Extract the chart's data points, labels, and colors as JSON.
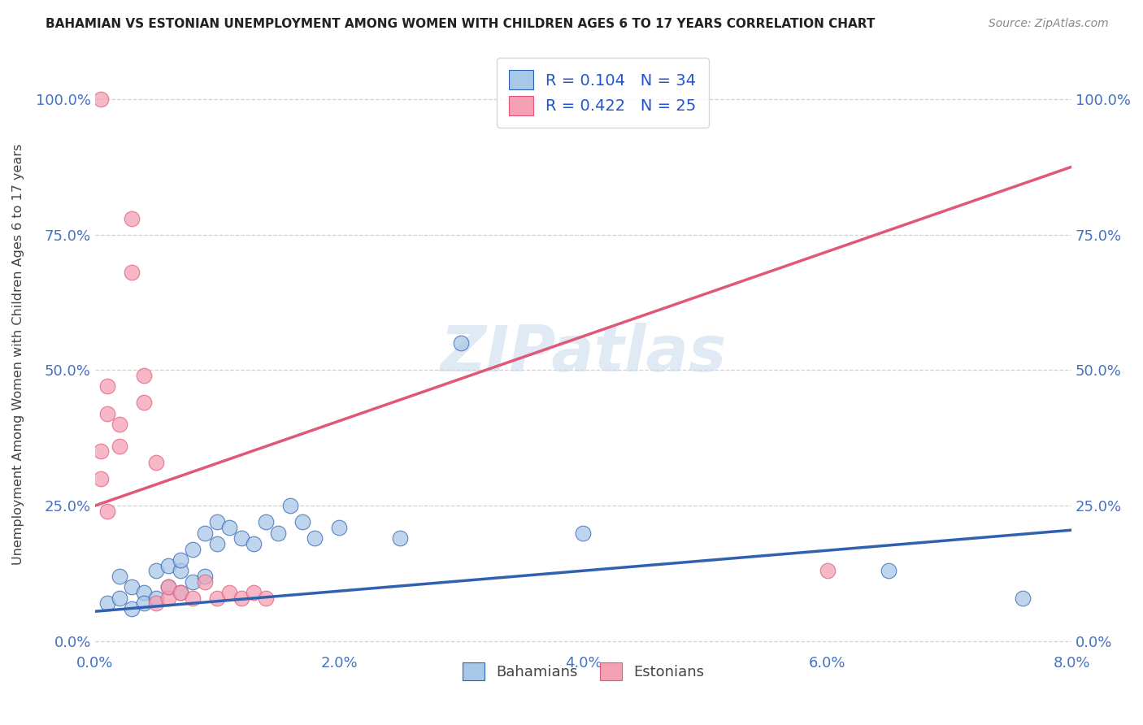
{
  "title": "BAHAMIAN VS ESTONIAN UNEMPLOYMENT AMONG WOMEN WITH CHILDREN AGES 6 TO 17 YEARS CORRELATION CHART",
  "source": "Source: ZipAtlas.com",
  "tick_color": "#4472c4",
  "ylabel": "Unemployment Among Women with Children Ages 6 to 17 years",
  "xlim": [
    0.0,
    0.08
  ],
  "ylim": [
    -0.02,
    1.08
  ],
  "xtick_labels": [
    "0.0%",
    "2.0%",
    "4.0%",
    "6.0%",
    "8.0%"
  ],
  "xtick_vals": [
    0.0,
    0.02,
    0.04,
    0.06,
    0.08
  ],
  "ytick_labels": [
    "0.0%",
    "25.0%",
    "50.0%",
    "75.0%",
    "100.0%"
  ],
  "ytick_vals": [
    0.0,
    0.25,
    0.5,
    0.75,
    1.0
  ],
  "bahamian_color": "#a8c8e8",
  "estonian_color": "#f4a0b5",
  "blue_line_color": "#3060b0",
  "pink_line_color": "#e05878",
  "R_bahamian": 0.104,
  "N_bahamian": 34,
  "R_estonian": 0.422,
  "N_estonian": 25,
  "legend_text_color": "#2255cc",
  "bahamian_x": [
    0.001,
    0.002,
    0.002,
    0.003,
    0.003,
    0.004,
    0.004,
    0.005,
    0.005,
    0.006,
    0.006,
    0.007,
    0.007,
    0.007,
    0.008,
    0.008,
    0.009,
    0.009,
    0.01,
    0.01,
    0.011,
    0.012,
    0.013,
    0.014,
    0.015,
    0.016,
    0.017,
    0.018,
    0.02,
    0.025,
    0.03,
    0.04,
    0.065,
    0.076
  ],
  "bahamian_y": [
    0.07,
    0.08,
    0.12,
    0.1,
    0.06,
    0.09,
    0.07,
    0.13,
    0.08,
    0.14,
    0.1,
    0.09,
    0.13,
    0.15,
    0.11,
    0.17,
    0.2,
    0.12,
    0.22,
    0.18,
    0.21,
    0.19,
    0.18,
    0.22,
    0.2,
    0.25,
    0.22,
    0.19,
    0.21,
    0.19,
    0.55,
    0.2,
    0.13,
    0.08
  ],
  "estonian_x": [
    0.0005,
    0.0005,
    0.001,
    0.001,
    0.001,
    0.002,
    0.002,
    0.003,
    0.003,
    0.004,
    0.004,
    0.005,
    0.005,
    0.006,
    0.006,
    0.007,
    0.008,
    0.009,
    0.01,
    0.011,
    0.012,
    0.013,
    0.014,
    0.06,
    0.0005
  ],
  "estonian_y": [
    0.3,
    0.35,
    0.47,
    0.42,
    0.24,
    0.4,
    0.36,
    0.78,
    0.68,
    0.49,
    0.44,
    0.33,
    0.07,
    0.08,
    0.1,
    0.09,
    0.08,
    0.11,
    0.08,
    0.09,
    0.08,
    0.09,
    0.08,
    0.13,
    1.0
  ],
  "blue_line_x0": 0.0,
  "blue_line_y0": 0.055,
  "blue_line_x1": 0.08,
  "blue_line_y1": 0.205,
  "pink_line_x0": 0.0,
  "pink_line_y0": 0.25,
  "pink_line_x1": 0.08,
  "pink_line_y1": 0.875,
  "watermark": "ZIPatlas",
  "background_color": "#ffffff"
}
